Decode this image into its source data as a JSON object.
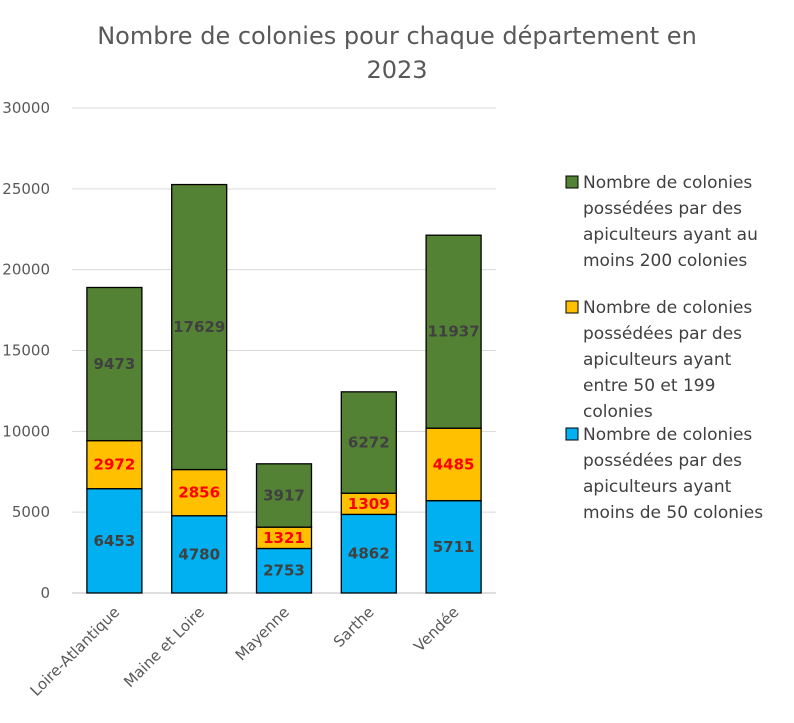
{
  "chart_data": {
    "type": "bar",
    "stacked": true,
    "title": "Nombre de colonies pour chaque département en 2023",
    "title_lines": [
      "Nombre de colonies pour chaque département en",
      "2023"
    ],
    "xlabel": "",
    "ylabel": "",
    "ylim": [
      0,
      30000
    ],
    "yticks": [
      0,
      5000,
      10000,
      15000,
      20000,
      25000,
      30000
    ],
    "grid": true,
    "legend_position": "right",
    "categories": [
      "Loire-Atlantique",
      "Maine et Loire",
      "Mayenne",
      "Sarthe",
      "Vendée"
    ],
    "series": [
      {
        "name": "Nombre de colonies possédées par des apiculteurs ayant moins de 50 colonies",
        "name_lines": [
          "Nombre de colonies",
          "possédées par des",
          "apiculteurs ayant",
          "moins de 50 colonies"
        ],
        "color": "#00b0f0",
        "label_color": "#404040",
        "values": [
          6453,
          4780,
          2753,
          4862,
          5711
        ]
      },
      {
        "name": "Nombre de colonies possédées par des apiculteurs ayant entre 50 et 199 colonies",
        "name_lines": [
          "Nombre de colonies",
          "possédées par des",
          "apiculteurs ayant",
          "entre 50 et 199",
          "colonies"
        ],
        "color": "#ffc000",
        "label_color": "#ff0000",
        "values": [
          2972,
          2856,
          1321,
          1309,
          4485
        ]
      },
      {
        "name": "Nombre de colonies possédées par des apiculteurs ayant au moins 200 colonies",
        "name_lines": [
          "Nombre de colonies",
          "possédées par des",
          "apiculteurs ayant au",
          "moins 200 colonies"
        ],
        "color": "#548235",
        "label_color": "#404040",
        "values": [
          9473,
          17629,
          3917,
          6272,
          11937
        ]
      }
    ],
    "legend_order": [
      2,
      1,
      0
    ]
  }
}
